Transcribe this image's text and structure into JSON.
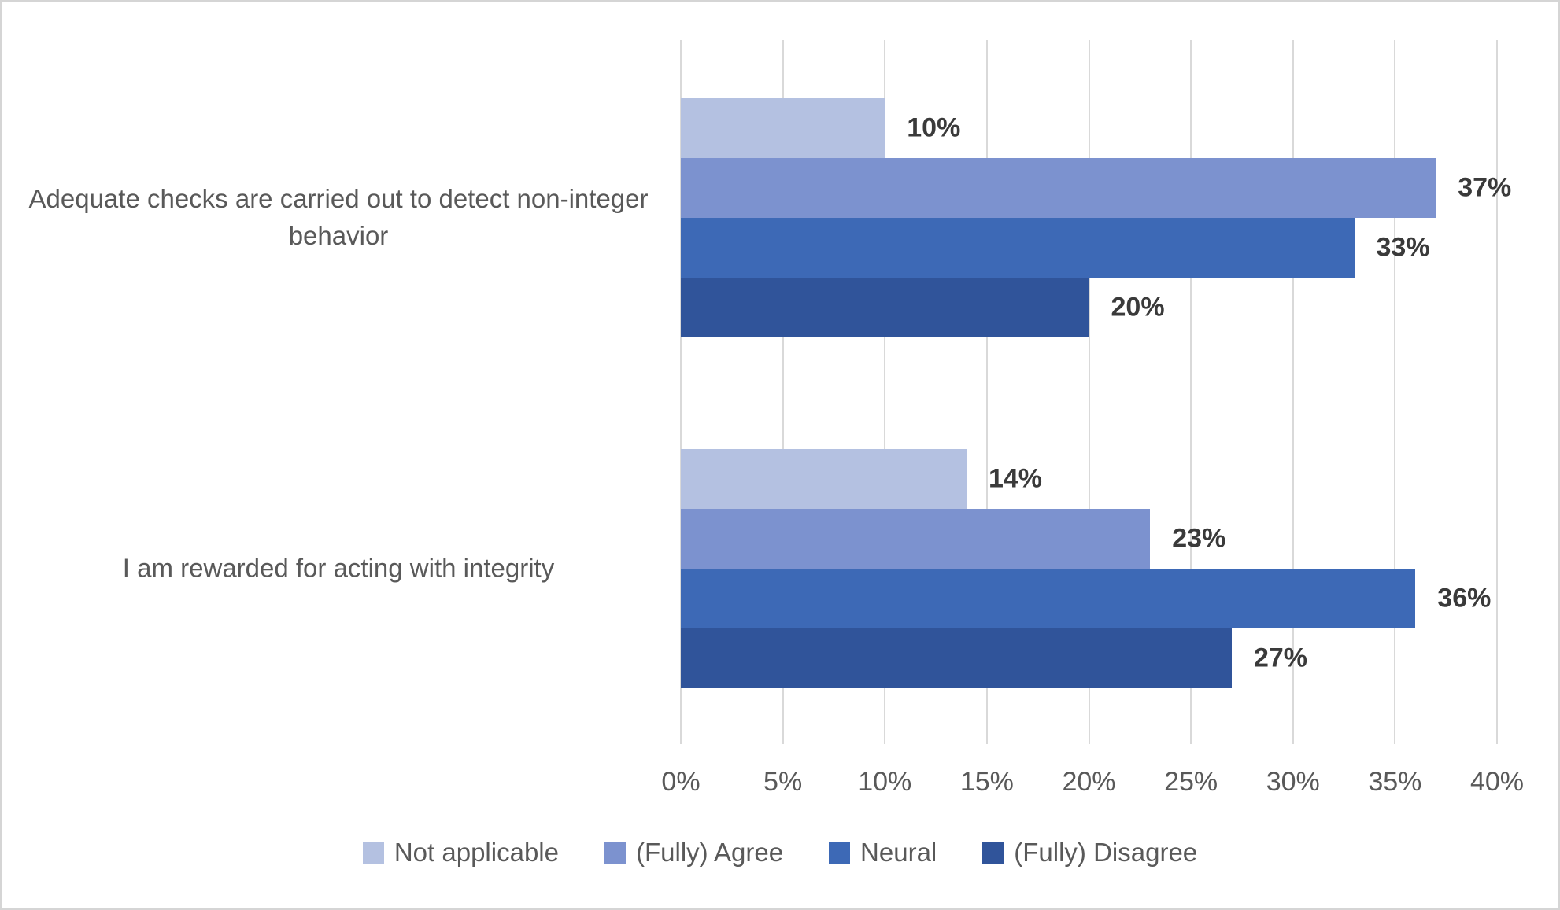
{
  "chart_data": {
    "type": "bar",
    "orientation": "horizontal",
    "title": "",
    "categories": [
      "Adequate checks are carried out to detect non-integer behavior",
      "I am rewarded for acting with integrity"
    ],
    "series": [
      {
        "name": "Not applicable",
        "color": "#b4c1e1",
        "values": [
          10,
          14
        ],
        "labels": [
          "10%",
          "14%"
        ]
      },
      {
        "name": "(Fully) Agree",
        "color": "#7c92cf",
        "values": [
          37,
          23
        ],
        "labels": [
          "37%",
          "23%"
        ]
      },
      {
        "name": "Neural",
        "color": "#3d69b6",
        "values": [
          33,
          36
        ],
        "labels": [
          "33%",
          "36%"
        ]
      },
      {
        "name": "(Fully) Disagree",
        "color": "#30549a",
        "values": [
          20,
          27
        ],
        "labels": [
          "20%",
          "27%"
        ]
      }
    ],
    "x_axis": {
      "min": 0,
      "max": 40,
      "tick_step": 5,
      "tick_labels": [
        "0%",
        "5%",
        "10%",
        "15%",
        "20%",
        "25%",
        "30%",
        "35%",
        "40%"
      ],
      "gridlines": true,
      "gridline_color": "#d9d9d9"
    },
    "value_label_suffix": "%",
    "legend_position": "bottom"
  }
}
